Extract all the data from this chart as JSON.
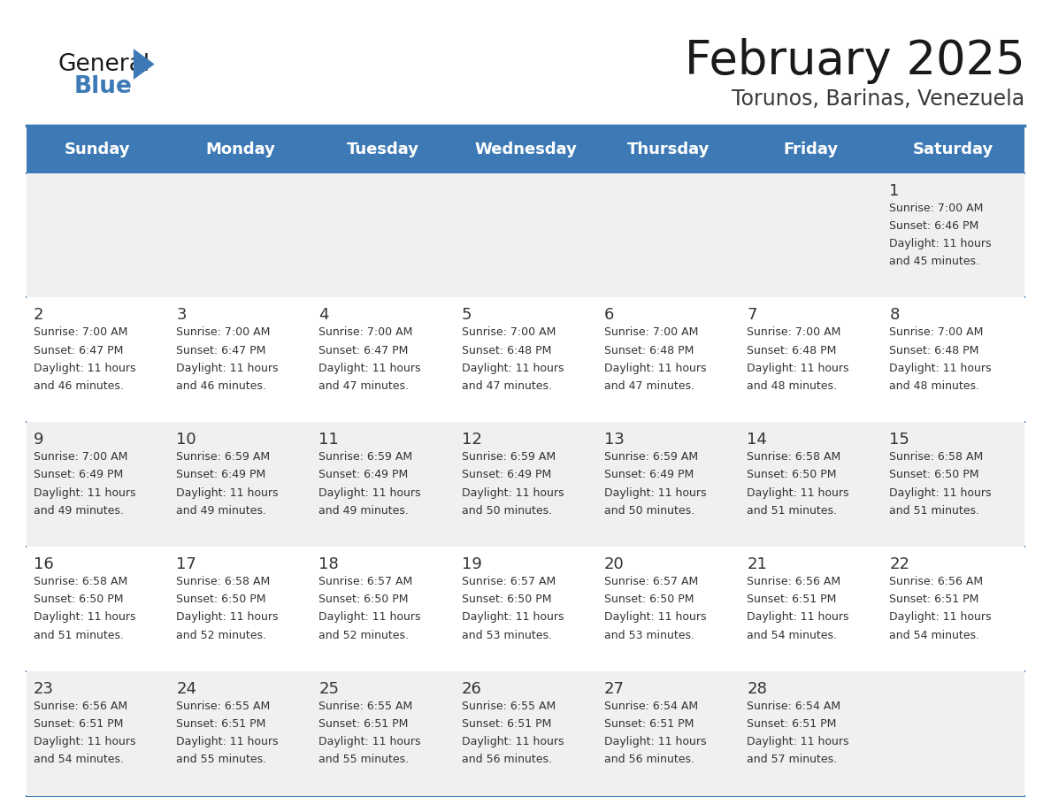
{
  "title": "February 2025",
  "subtitle": "Torunos, Barinas, Venezuela",
  "header_bg": "#3d7ab5",
  "header_text_color": "#ffffff",
  "day_names": [
    "Sunday",
    "Monday",
    "Tuesday",
    "Wednesday",
    "Thursday",
    "Friday",
    "Saturday"
  ],
  "bg_color": "#ffffff",
  "cell_bg_row0": "#f0f0f0",
  "cell_bg_row1": "#ffffff",
  "cell_bg_row2": "#f0f0f0",
  "cell_bg_row3": "#ffffff",
  "cell_bg_row4": "#f0f0f0",
  "separator_color": "#3d7ab5",
  "text_color": "#333333",
  "calendar": [
    [
      null,
      null,
      null,
      null,
      null,
      null,
      {
        "day": "1",
        "sunrise": "7:00 AM",
        "sunset": "6:46 PM",
        "daylight": "11 hours",
        "daylight2": "and 45 minutes."
      }
    ],
    [
      {
        "day": "2",
        "sunrise": "7:00 AM",
        "sunset": "6:47 PM",
        "daylight": "11 hours",
        "daylight2": "and 46 minutes."
      },
      {
        "day": "3",
        "sunrise": "7:00 AM",
        "sunset": "6:47 PM",
        "daylight": "11 hours",
        "daylight2": "and 46 minutes."
      },
      {
        "day": "4",
        "sunrise": "7:00 AM",
        "sunset": "6:47 PM",
        "daylight": "11 hours",
        "daylight2": "and 47 minutes."
      },
      {
        "day": "5",
        "sunrise": "7:00 AM",
        "sunset": "6:48 PM",
        "daylight": "11 hours",
        "daylight2": "and 47 minutes."
      },
      {
        "day": "6",
        "sunrise": "7:00 AM",
        "sunset": "6:48 PM",
        "daylight": "11 hours",
        "daylight2": "and 47 minutes."
      },
      {
        "day": "7",
        "sunrise": "7:00 AM",
        "sunset": "6:48 PM",
        "daylight": "11 hours",
        "daylight2": "and 48 minutes."
      },
      {
        "day": "8",
        "sunrise": "7:00 AM",
        "sunset": "6:48 PM",
        "daylight": "11 hours",
        "daylight2": "and 48 minutes."
      }
    ],
    [
      {
        "day": "9",
        "sunrise": "7:00 AM",
        "sunset": "6:49 PM",
        "daylight": "11 hours",
        "daylight2": "and 49 minutes."
      },
      {
        "day": "10",
        "sunrise": "6:59 AM",
        "sunset": "6:49 PM",
        "daylight": "11 hours",
        "daylight2": "and 49 minutes."
      },
      {
        "day": "11",
        "sunrise": "6:59 AM",
        "sunset": "6:49 PM",
        "daylight": "11 hours",
        "daylight2": "and 49 minutes."
      },
      {
        "day": "12",
        "sunrise": "6:59 AM",
        "sunset": "6:49 PM",
        "daylight": "11 hours",
        "daylight2": "and 50 minutes."
      },
      {
        "day": "13",
        "sunrise": "6:59 AM",
        "sunset": "6:49 PM",
        "daylight": "11 hours",
        "daylight2": "and 50 minutes."
      },
      {
        "day": "14",
        "sunrise": "6:58 AM",
        "sunset": "6:50 PM",
        "daylight": "11 hours",
        "daylight2": "and 51 minutes."
      },
      {
        "day": "15",
        "sunrise": "6:58 AM",
        "sunset": "6:50 PM",
        "daylight": "11 hours",
        "daylight2": "and 51 minutes."
      }
    ],
    [
      {
        "day": "16",
        "sunrise": "6:58 AM",
        "sunset": "6:50 PM",
        "daylight": "11 hours",
        "daylight2": "and 51 minutes."
      },
      {
        "day": "17",
        "sunrise": "6:58 AM",
        "sunset": "6:50 PM",
        "daylight": "11 hours",
        "daylight2": "and 52 minutes."
      },
      {
        "day": "18",
        "sunrise": "6:57 AM",
        "sunset": "6:50 PM",
        "daylight": "11 hours",
        "daylight2": "and 52 minutes."
      },
      {
        "day": "19",
        "sunrise": "6:57 AM",
        "sunset": "6:50 PM",
        "daylight": "11 hours",
        "daylight2": "and 53 minutes."
      },
      {
        "day": "20",
        "sunrise": "6:57 AM",
        "sunset": "6:50 PM",
        "daylight": "11 hours",
        "daylight2": "and 53 minutes."
      },
      {
        "day": "21",
        "sunrise": "6:56 AM",
        "sunset": "6:51 PM",
        "daylight": "11 hours",
        "daylight2": "and 54 minutes."
      },
      {
        "day": "22",
        "sunrise": "6:56 AM",
        "sunset": "6:51 PM",
        "daylight": "11 hours",
        "daylight2": "and 54 minutes."
      }
    ],
    [
      {
        "day": "23",
        "sunrise": "6:56 AM",
        "sunset": "6:51 PM",
        "daylight": "11 hours",
        "daylight2": "and 54 minutes."
      },
      {
        "day": "24",
        "sunrise": "6:55 AM",
        "sunset": "6:51 PM",
        "daylight": "11 hours",
        "daylight2": "and 55 minutes."
      },
      {
        "day": "25",
        "sunrise": "6:55 AM",
        "sunset": "6:51 PM",
        "daylight": "11 hours",
        "daylight2": "and 55 minutes."
      },
      {
        "day": "26",
        "sunrise": "6:55 AM",
        "sunset": "6:51 PM",
        "daylight": "11 hours",
        "daylight2": "and 56 minutes."
      },
      {
        "day": "27",
        "sunrise": "6:54 AM",
        "sunset": "6:51 PM",
        "daylight": "11 hours",
        "daylight2": "and 56 minutes."
      },
      {
        "day": "28",
        "sunrise": "6:54 AM",
        "sunset": "6:51 PM",
        "daylight": "11 hours",
        "daylight2": "and 57 minutes."
      },
      null
    ]
  ],
  "row_bg_colors": [
    "#f0f0f0",
    "#ffffff",
    "#f0f0f0",
    "#ffffff",
    "#f0f0f0"
  ],
  "title_fontsize": 38,
  "subtitle_fontsize": 17,
  "header_fontsize": 13,
  "day_num_fontsize": 13,
  "info_fontsize": 9
}
